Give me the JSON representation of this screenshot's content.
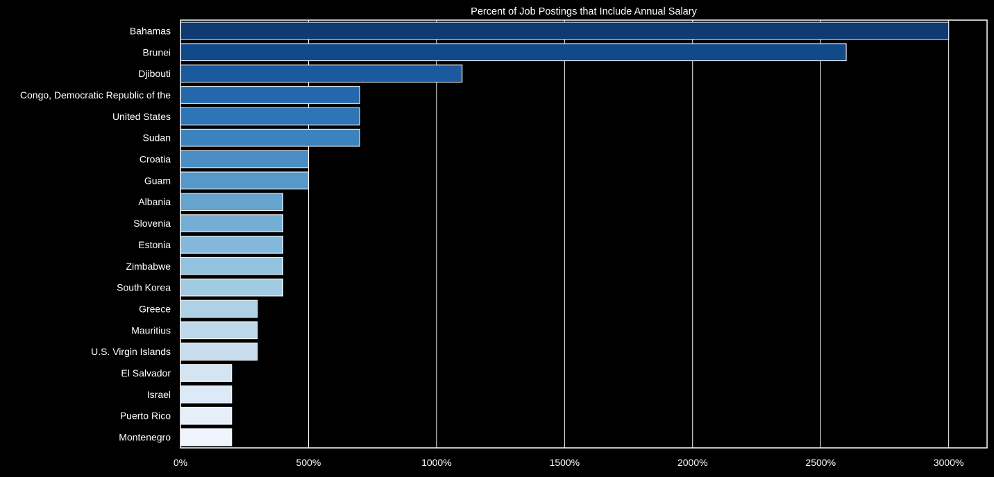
{
  "chart_data": {
    "type": "bar",
    "orientation": "horizontal",
    "title": "Percent of Job Postings that Include Annual Salary",
    "xlabel": "",
    "ylabel": "",
    "xlim": [
      0,
      3150
    ],
    "xticks": [
      0,
      500,
      1000,
      1500,
      2000,
      2500,
      3000
    ],
    "xtick_labels": [
      "0%",
      "500%",
      "1000%",
      "1500%",
      "2000%",
      "2500%",
      "3000%"
    ],
    "grid": "vertical",
    "categories": [
      "Bahamas",
      "Brunei",
      "Djibouti",
      "Congo, Democratic Republic of the",
      "United States",
      "Sudan",
      "Croatia",
      "Guam",
      "Albania",
      "Slovenia",
      "Estonia",
      "Zimbabwe",
      "South Korea",
      "Greece",
      "Mauritius",
      "U.S. Virgin Islands",
      "El Salvador",
      "Israel",
      "Puerto Rico",
      "Montenegro"
    ],
    "values": [
      3000,
      2600,
      1100,
      700,
      700,
      700,
      500,
      500,
      400,
      400,
      400,
      400,
      400,
      300,
      300,
      300,
      200,
      200,
      200,
      200
    ],
    "colors": [
      "#0f3a72",
      "#124a89",
      "#1c5a9e",
      "#2468ab",
      "#2d75b6",
      "#3b83bf",
      "#4a8ec3",
      "#5698c8",
      "#67a3cf",
      "#75aed4",
      "#83b8da",
      "#93c2df",
      "#a2cbe2",
      "#afd1e6",
      "#bcd8ea",
      "#c7ddee",
      "#d3e4f3",
      "#dce9f6",
      "#e6eff9",
      "#eff5fc"
    ]
  },
  "theme": {
    "background": "#000000",
    "text": "#ffffff",
    "grid": "#ffffff",
    "bar_edge": "#ffffff"
  }
}
